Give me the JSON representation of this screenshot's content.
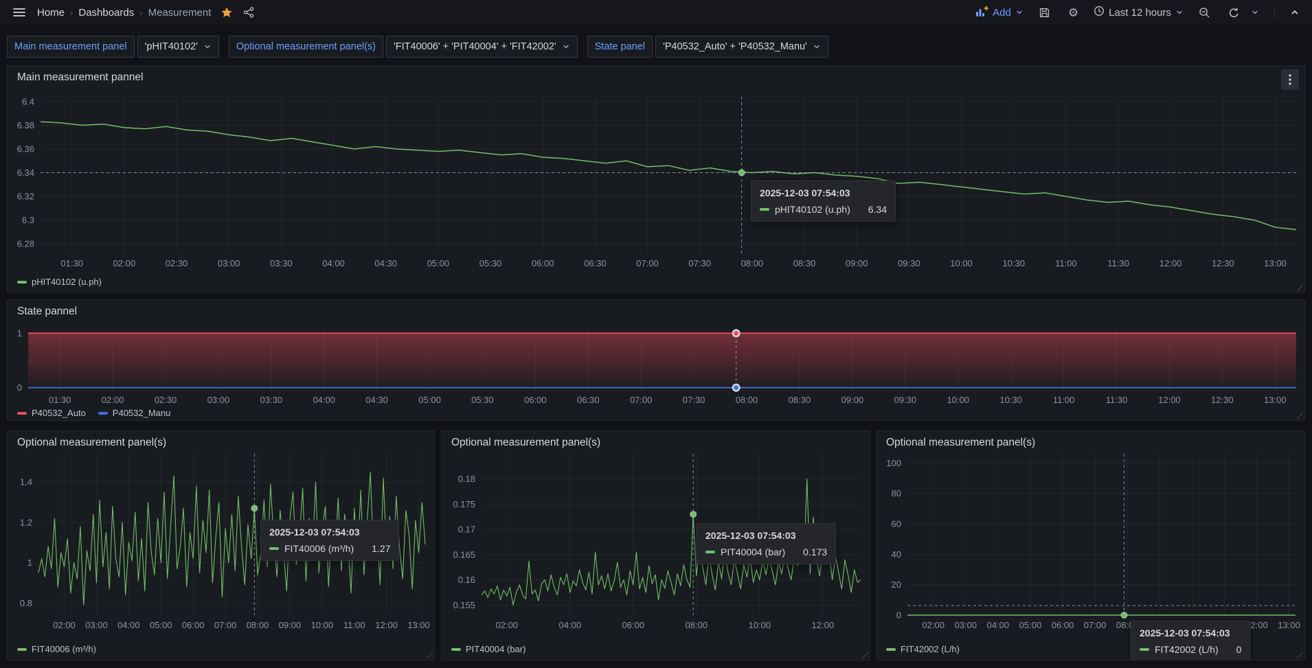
{
  "nav": {
    "breadcrumb": [
      "Home",
      "Dashboards",
      "Measurement"
    ],
    "add_label": "Add",
    "time_range_label": "Last 12 hours",
    "icons": [
      "menu-icon",
      "star-icon",
      "share-icon",
      "graph-add-icon",
      "save-icon",
      "gear-icon",
      "clock-icon",
      "zoom-out-icon",
      "refresh-icon",
      "chevron-down-icon",
      "chevron-up-icon"
    ],
    "accent_blue": "#6e9fff",
    "star_color": "#eda13c"
  },
  "variables": [
    {
      "label": "Main measurement panel",
      "value": "'pHIT40102'"
    },
    {
      "label": "Optional measurement panel(s)",
      "value": "'FIT40006' + 'PIT40004' + 'FIT42002'"
    },
    {
      "label": "State panel",
      "value": "'P40532_Auto' + 'P40532_Manu'"
    }
  ],
  "cursor": {
    "time": "2025-12-03 07:54:03",
    "t": 7.9,
    "value": 6.34
  },
  "panels": [
    {
      "key": "main",
      "title": "Main measurement pannel",
      "legend": [
        {
          "label": "pHIT40102 (u.ph)",
          "color": "#73bf69"
        }
      ],
      "tooltip": {
        "time": "2025-12-03 07:54:03",
        "series": "pHIT40102 (u.ph)",
        "value": "6.34",
        "color": "#73bf69"
      },
      "chart_data": {
        "type": "line",
        "xlim": [
          1.2,
          13.2
        ],
        "ylim": [
          6.272,
          6.404
        ],
        "yticks": [
          6.4,
          6.38,
          6.36,
          6.34,
          6.32,
          6.3,
          6.28
        ],
        "xticks": [
          "01:30",
          "02:00",
          "02:30",
          "03:00",
          "03:30",
          "04:00",
          "04:30",
          "05:00",
          "05:30",
          "06:00",
          "06:30",
          "07:00",
          "07:30",
          "08:00",
          "08:30",
          "09:00",
          "09:30",
          "10:00",
          "10:30",
          "11:00",
          "11:30",
          "12:00",
          "12:30",
          "13:00"
        ],
        "series": [
          {
            "name": "pHIT40102 (u.ph)",
            "color": "#73bf69",
            "width": 1.5,
            "t0": 1.2,
            "dt": 0.2,
            "values": [
              6.383,
              6.382,
              6.38,
              6.381,
              6.378,
              6.377,
              6.379,
              6.376,
              6.375,
              6.372,
              6.37,
              6.367,
              6.369,
              6.366,
              6.363,
              6.36,
              6.362,
              6.36,
              6.359,
              6.358,
              6.359,
              6.357,
              6.355,
              6.356,
              6.353,
              6.352,
              6.35,
              6.348,
              6.35,
              6.345,
              6.346,
              6.342,
              6.344,
              6.341,
              6.34,
              6.341,
              6.339,
              6.34,
              6.338,
              6.337,
              6.335,
              6.331,
              6.332,
              6.33,
              6.328,
              6.326,
              6.324,
              6.322,
              6.323,
              6.32,
              6.317,
              6.315,
              6.316,
              6.313,
              6.311,
              6.308,
              6.305,
              6.303,
              6.3,
              6.294,
              6.292
            ]
          }
        ],
        "cursor_dots": [
          {
            "v": 6.34,
            "color": "#73bf69"
          }
        ]
      }
    },
    {
      "key": "state",
      "title": "State pannel",
      "legend": [
        {
          "label": "P40532_Auto",
          "color": "#f2495c"
        },
        {
          "label": "P40532_Manu",
          "color": "#3d71d9"
        }
      ],
      "chart_data": {
        "type": "area",
        "xlim": [
          1.2,
          13.2
        ],
        "ylim": [
          -0.08,
          1.08
        ],
        "yticks": [
          1,
          0
        ],
        "ygrid_extra": [
          0.5
        ],
        "xticks": [
          "01:30",
          "02:00",
          "02:30",
          "03:00",
          "03:30",
          "04:00",
          "04:30",
          "05:00",
          "05:30",
          "06:00",
          "06:30",
          "07:00",
          "07:30",
          "08:00",
          "08:30",
          "09:00",
          "09:30",
          "10:00",
          "10:30",
          "11:00",
          "11:30",
          "12:00",
          "12:30",
          "13:00"
        ],
        "series": [
          {
            "name": "P40532_Auto",
            "color": "#f2495c",
            "width": 1.8,
            "fill_to": 0,
            "t0": 1.2,
            "dt": 12,
            "values": [
              1,
              1
            ]
          },
          {
            "name": "P40532_Manu",
            "color": "#3d71d9",
            "width": 1.8,
            "t0": 1.2,
            "dt": 12,
            "values": [
              0,
              0
            ]
          }
        ],
        "cursor_dots": [
          {
            "v": 1,
            "color": "#f2495c",
            "ring": true
          },
          {
            "v": 0,
            "color": "#3d71d9",
            "ring": true
          }
        ]
      }
    },
    {
      "key": "p1",
      "title": "Optional measurement panel(s)",
      "legend": [
        {
          "label": "FIT40006 (m³/h)",
          "color": "#73bf69"
        }
      ],
      "tooltip": {
        "time": "2025-12-03 07:54:03",
        "series": "FIT40006 (m³/h)",
        "value": "1.27",
        "color": "#73bf69"
      },
      "chart_data": {
        "type": "line",
        "xlim": [
          1.2,
          13.2
        ],
        "ylim": [
          0.74,
          1.54
        ],
        "yticks": [
          1.4,
          1.2,
          1,
          0.8
        ],
        "xticks": [
          "02:00",
          "03:00",
          "04:00",
          "05:00",
          "06:00",
          "07:00",
          "08:00",
          "09:00",
          "10:00",
          "11:00",
          "12:00",
          "13:00"
        ],
        "series": [
          {
            "name": "FIT40006 (m³/h)",
            "color": "#73bf69",
            "width": 1.1,
            "t0": 1.2,
            "dt": 0.1,
            "values": [
              0.95,
              1.02,
              0.93,
              1.08,
              0.97,
              1.22,
              0.88,
              1.05,
              0.98,
              1.12,
              0.85,
              1.0,
              0.92,
              1.18,
              0.79,
              1.06,
              0.96,
              1.24,
              0.9,
              1.31,
              0.98,
              1.15,
              0.87,
              1.28,
              1.02,
              0.93,
              1.2,
              0.84,
              1.1,
              1.01,
              1.25,
              0.91,
              1.12,
              0.86,
              1.3,
              1.05,
              0.94,
              1.22,
              1.0,
              1.35,
              0.92,
              1.18,
              1.43,
              0.97,
              1.08,
              1.27,
              0.88,
              1.15,
              1.02,
              1.38,
              0.95,
              1.21,
              1.05,
              1.36,
              0.9,
              1.12,
              1.3,
              0.83,
              1.17,
              1.0,
              1.24,
              0.96,
              1.33,
              1.08,
              0.89,
              1.19,
              1.02,
              1.27,
              0.94,
              1.05,
              1.31,
              0.98,
              1.39,
              1.12,
              0.93,
              1.26,
              1.07,
              0.86,
              1.21,
              1.35,
              0.99,
              1.13,
              1.37,
              0.91,
              1.22,
              1.04,
              1.4,
              0.95,
              1.16,
              1.28,
              0.88,
              1.19,
              1.03,
              1.32,
              0.96,
              1.24,
              1.1,
              0.85,
              1.27,
              1.01,
              1.36,
              0.94,
              1.21,
              1.45,
              1.02,
              1.17,
              0.89,
              1.42,
              1.06,
              1.23,
              0.97,
              1.33,
              1.08,
              0.92,
              1.26,
              1.14,
              0.87,
              1.21,
              1.05,
              1.3,
              1.09
            ]
          }
        ],
        "cursor_dots": [
          {
            "v": 1.27,
            "color": "#73bf69"
          }
        ]
      }
    },
    {
      "key": "p2",
      "title": "Optional measurement panel(s)",
      "legend": [
        {
          "label": "PIT40004 (bar)",
          "color": "#73bf69"
        }
      ],
      "tooltip": {
        "time": "2025-12-03 07:54:03",
        "series": "PIT40004 (bar)",
        "value": "0.173",
        "color": "#73bf69"
      },
      "chart_data": {
        "type": "line",
        "xlim": [
          1.2,
          13.2
        ],
        "ylim": [
          0.153,
          0.185
        ],
        "yticks": [
          0.18,
          0.175,
          0.17,
          0.165,
          0.16,
          0.155
        ],
        "xticks": [
          "02:00",
          "04:00",
          "06:00",
          "08:00",
          "10:00",
          "12:00"
        ],
        "series": [
          {
            "name": "PIT40004 (bar)",
            "color": "#73bf69",
            "width": 1.1,
            "t0": 1.2,
            "dt": 0.1,
            "values": [
              0.157,
              0.1578,
              0.1565,
              0.1582,
              0.1572,
              0.1588,
              0.156,
              0.158,
              0.1568,
              0.1585,
              0.155,
              0.1575,
              0.159,
              0.157,
              0.1562,
              0.1637,
              0.1572,
              0.158,
              0.1558,
              0.1592,
              0.16,
              0.1578,
              0.161,
              0.1585,
              0.157,
              0.1605,
              0.159,
              0.1612,
              0.1575,
              0.1598,
              0.1588,
              0.162,
              0.1595,
              0.158,
              0.1615,
              0.1572,
              0.1655,
              0.159,
              0.1608,
              0.1582,
              0.1612,
              0.1578,
              0.1598,
              0.1635,
              0.1585,
              0.16,
              0.157,
              0.1618,
              0.159,
              0.1655,
              0.1582,
              0.1605,
              0.1575,
              0.1628,
              0.1592,
              0.161,
              0.156,
              0.16,
              0.1583,
              0.1618,
              0.1595,
              0.157,
              0.1612,
              0.1588,
              0.163,
              0.16,
              0.1585,
              0.173,
              0.1608,
              0.1665,
              0.1625,
              0.159,
              0.1648,
              0.161,
              0.158,
              0.1635,
              0.1602,
              0.1658,
              0.1615,
              0.159,
              0.164,
              0.1612,
              0.1582,
              0.163,
              0.1605,
              0.1645,
              0.1595,
              0.162,
              0.16,
              0.1638,
              0.161,
              0.1642,
              0.1618,
              0.159,
              0.1635,
              0.1612,
              0.165,
              0.1622,
              0.16,
              0.1645,
              0.1628,
              0.1655,
              0.1635,
              0.18,
              0.1612,
              0.1725,
              0.164,
              0.1608,
              0.166,
              0.1632,
              0.1655,
              0.16,
              0.1648,
              0.1615,
              0.1582,
              0.164,
              0.161,
              0.1575,
              0.162,
              0.1595,
              0.16
            ]
          }
        ],
        "cursor_dots": [
          {
            "v": 0.173,
            "color": "#73bf69"
          }
        ]
      }
    },
    {
      "key": "p3",
      "title": "Optional measurement panel(s)",
      "legend": [
        {
          "label": "FIT42002 (L/h)",
          "color": "#73bf69"
        }
      ],
      "tooltip": {
        "time": "2025-12-03 07:54:03",
        "series": "FIT42002 (L/h)",
        "value": "0",
        "color": "#73bf69"
      },
      "chart_data": {
        "type": "line",
        "xlim": [
          1.2,
          13.2
        ],
        "ylim": [
          0,
          106
        ],
        "yticks": [
          100,
          80,
          60,
          40,
          20,
          0
        ],
        "xticks": [
          "02:00",
          "03:00",
          "04:00",
          "05:00",
          "06:00",
          "07:00",
          "08:00",
          "09:00",
          "10:00",
          "11:00",
          "12:00",
          "13:00"
        ],
        "series": [
          {
            "name": "FIT42002 (L/h)",
            "color": "#73bf69",
            "width": 1.5,
            "t0": 1.2,
            "dt": 12,
            "values": [
              0,
              0
            ]
          }
        ],
        "cursor_dots": [
          {
            "v": 0,
            "color": "#73bf69"
          }
        ]
      }
    }
  ]
}
